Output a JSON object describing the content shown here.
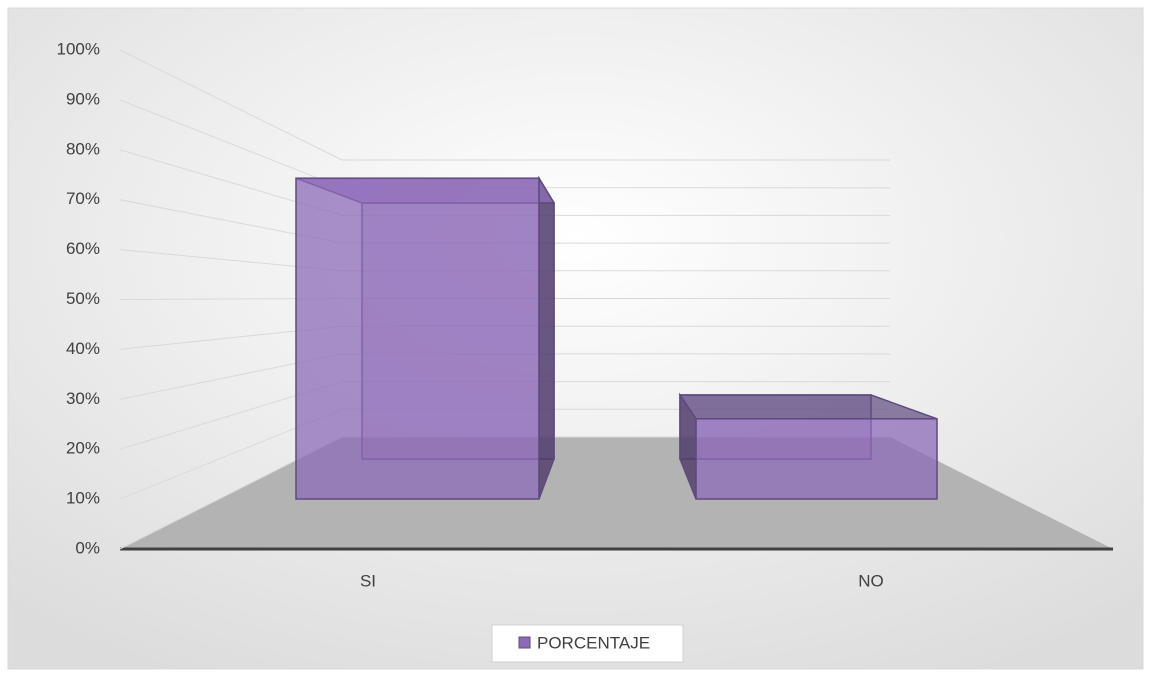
{
  "chart_data": {
    "type": "bar3d",
    "categories": [
      "SI",
      "NO"
    ],
    "series": [
      {
        "name": "PORCENTAJE",
        "color": "#8e6bb8",
        "values": [
          80,
          20
        ]
      }
    ],
    "ylim": [
      0,
      100
    ],
    "yticks": [
      {
        "value": 0,
        "label": "0%"
      },
      {
        "value": 10,
        "label": "10%"
      },
      {
        "value": 20,
        "label": "20%"
      },
      {
        "value": 30,
        "label": "30%"
      },
      {
        "value": 40,
        "label": "40%"
      },
      {
        "value": 50,
        "label": "50%"
      },
      {
        "value": 60,
        "label": "60%"
      },
      {
        "value": 70,
        "label": "70%"
      },
      {
        "value": 80,
        "label": "80%"
      },
      {
        "value": 90,
        "label": "90%"
      },
      {
        "value": 100,
        "label": "100%"
      }
    ],
    "grid": true,
    "legend": "bottom"
  }
}
